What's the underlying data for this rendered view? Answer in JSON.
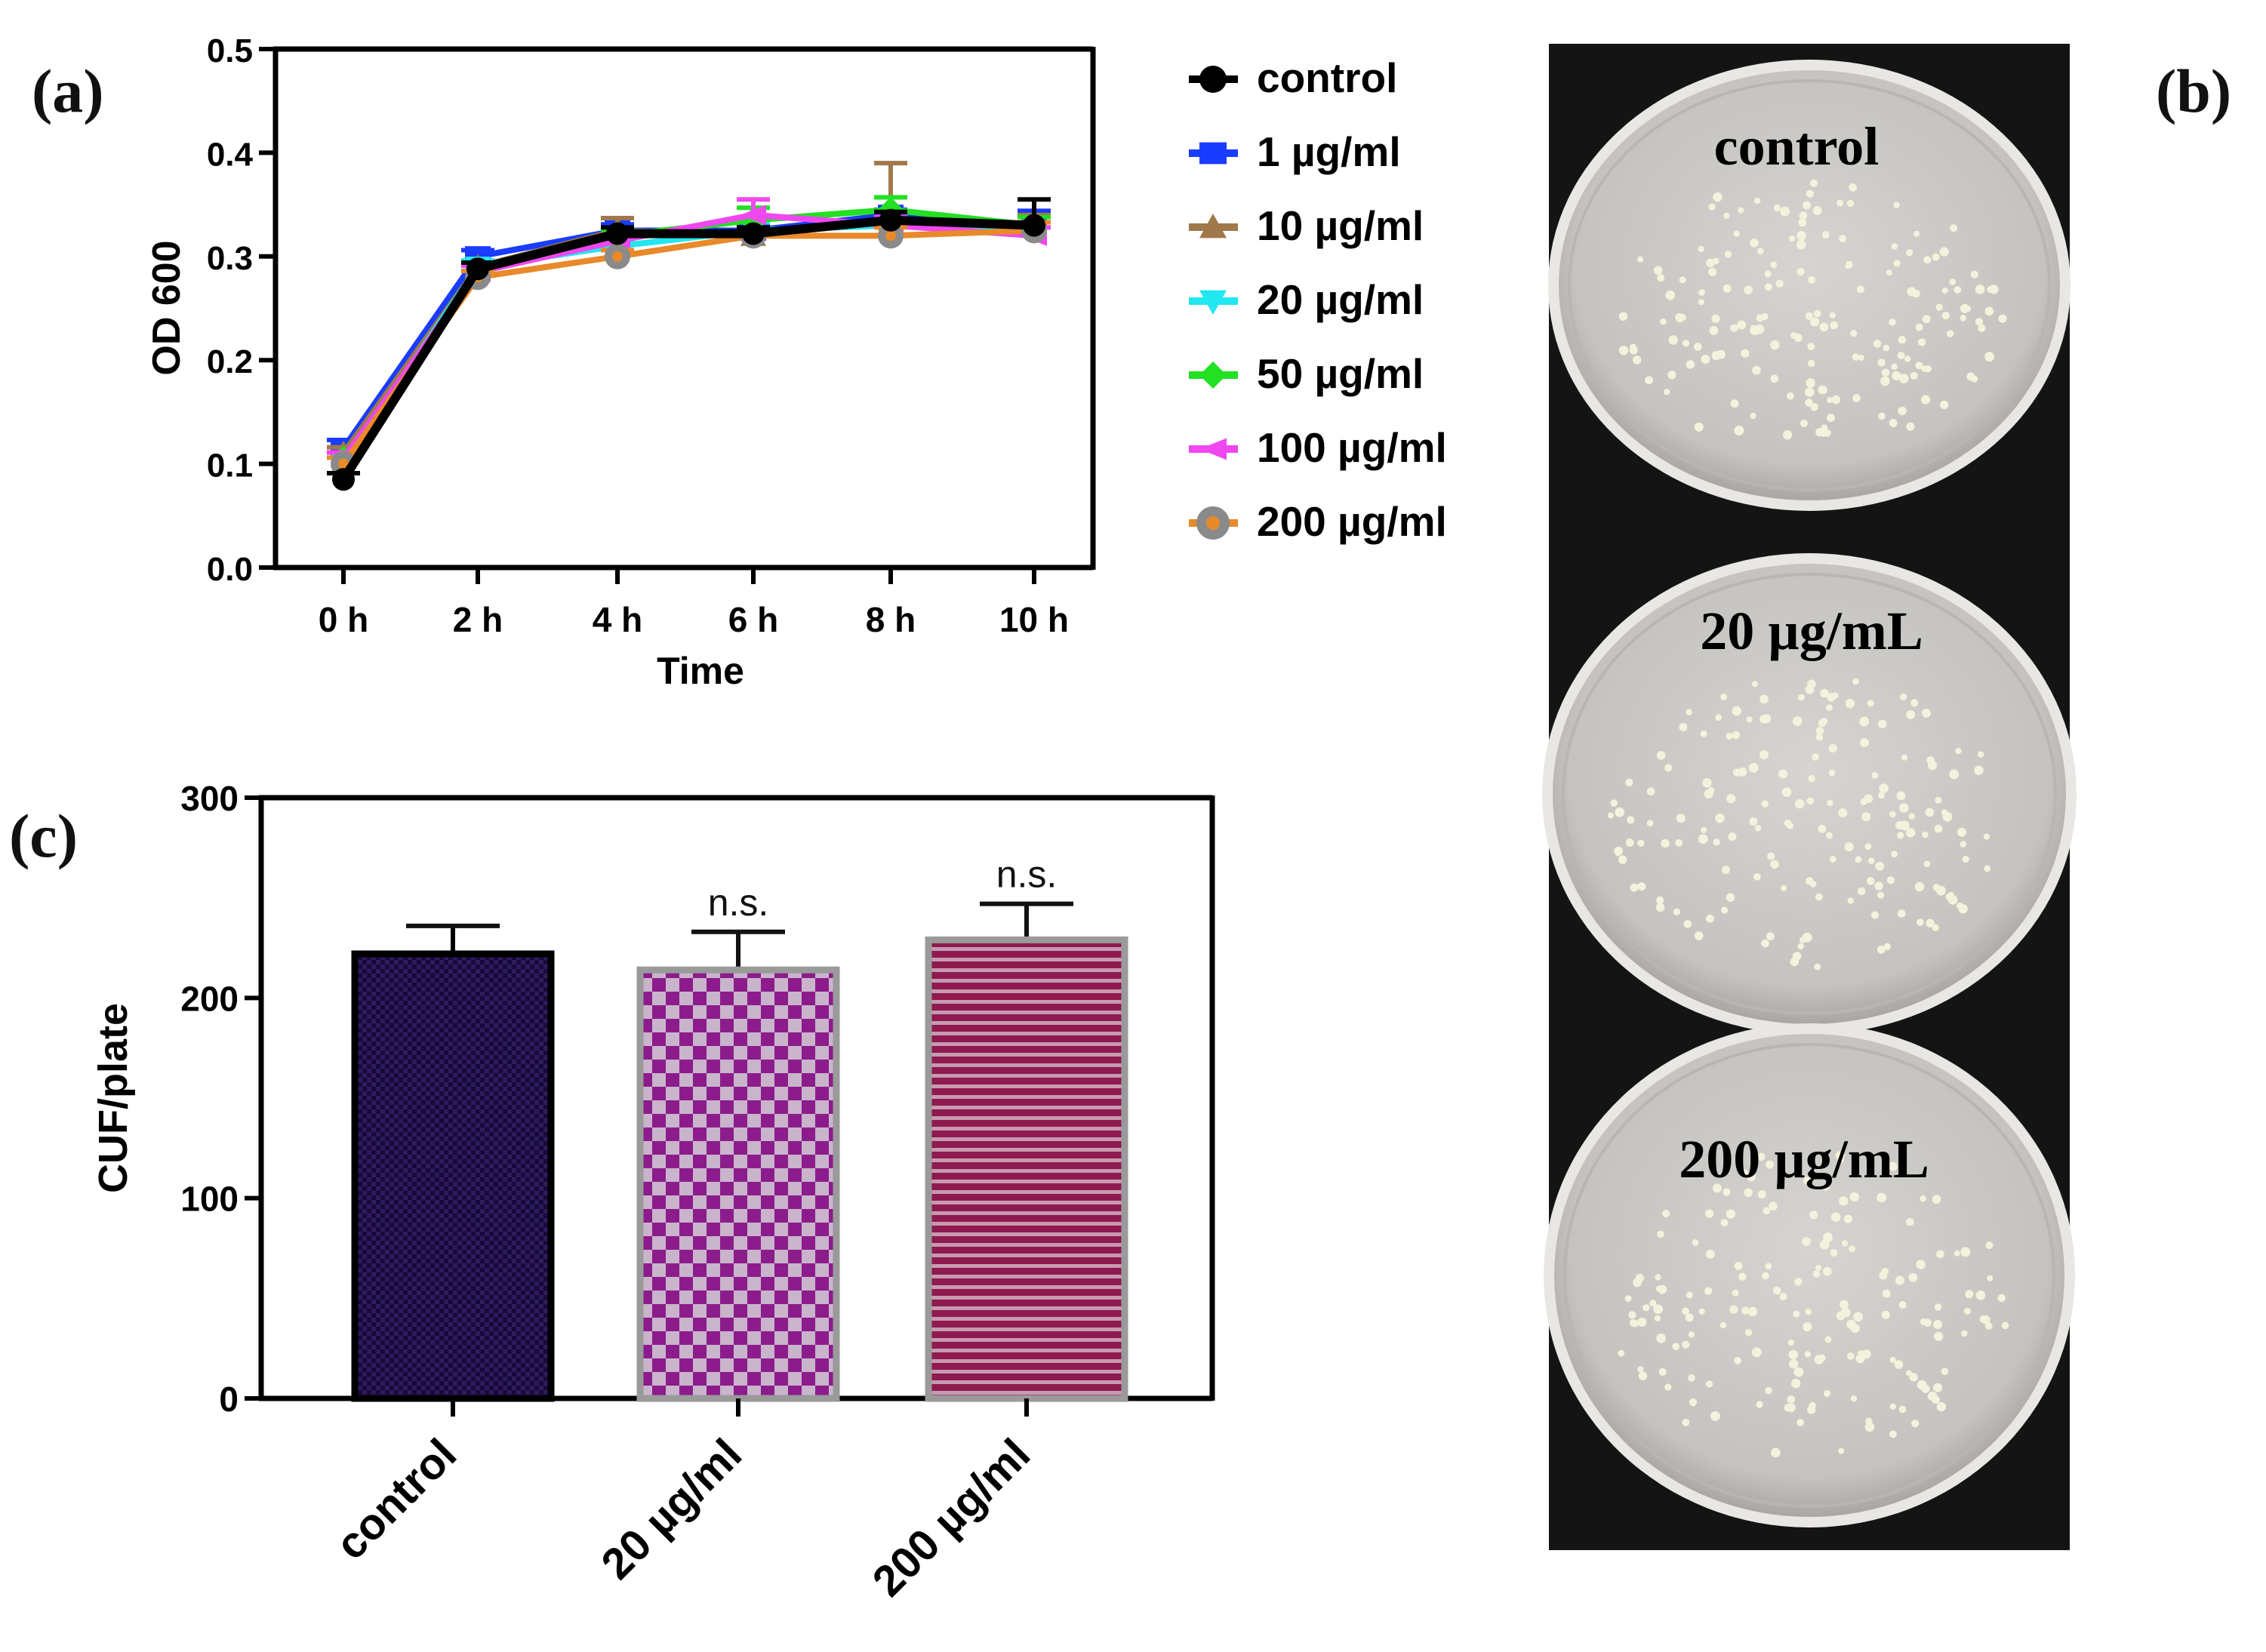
{
  "panel_labels": {
    "a": "(a)",
    "b": "(b)",
    "c": "(c)"
  },
  "chart_data": [
    {
      "type": "line",
      "panel": "a",
      "title": "",
      "xlabel": "Time",
      "ylabel": "OD 600",
      "x": [
        "0 h",
        "2 h",
        "4 h",
        "6 h",
        "8 h",
        "10 h"
      ],
      "ylim": [
        0,
        0.5
      ],
      "yticks": [
        "0.0",
        "0.1",
        "0.2",
        "0.3",
        "0.4",
        "0.5"
      ],
      "grid": false,
      "legend_position": "right",
      "series": [
        {
          "name": "1 µg/ml",
          "color": "#1a3cff",
          "marker": "square",
          "values": [
            0.115,
            0.3,
            0.325,
            0.325,
            0.34,
            0.33
          ],
          "err": [
            0.008,
            0.006,
            0.006,
            0.006,
            0.005,
            0.014
          ]
        },
        {
          "name": "10 µg/ml",
          "color": "#a0784a",
          "marker": "triangle",
          "values": [
            0.11,
            0.29,
            0.325,
            0.32,
            0.335,
            0.33
          ],
          "err": [
            0.006,
            0.006,
            0.012,
            0.006,
            0.055,
            0.01
          ]
        },
        {
          "name": "20 µg/ml",
          "color": "#22e6f0",
          "marker": "triangle-down",
          "values": [
            0.1,
            0.29,
            0.31,
            0.325,
            0.33,
            0.325
          ],
          "err": [
            0.006,
            0.006,
            0.006,
            0.008,
            0.006,
            0.008
          ]
        },
        {
          "name": "50 µg/ml",
          "color": "#22e022",
          "marker": "diamond",
          "values": [
            0.105,
            0.285,
            0.32,
            0.335,
            0.345,
            0.33
          ],
          "err": [
            0.006,
            0.006,
            0.006,
            0.012,
            0.012,
            0.008
          ]
        },
        {
          "name": "100 µg/ml",
          "color": "#f047f0",
          "marker": "triangle-left",
          "values": [
            0.105,
            0.285,
            0.315,
            0.34,
            0.33,
            0.32
          ],
          "err": [
            0.006,
            0.006,
            0.006,
            0.015,
            0.008,
            0.008
          ]
        },
        {
          "name": "200 µg/ml",
          "color": "#e8892a",
          "marker": "circle",
          "values": [
            0.1,
            0.28,
            0.3,
            0.32,
            0.32,
            0.325
          ],
          "err": [
            0.006,
            0.006,
            0.006,
            0.006,
            0.008,
            0.008
          ]
        },
        {
          "name": "control",
          "color": "#000000",
          "marker": "circle",
          "values": [
            0.085,
            0.288,
            0.322,
            0.322,
            0.335,
            0.33
          ],
          "err": [
            0.006,
            0.006,
            0.006,
            0.006,
            0.008,
            0.025
          ]
        }
      ],
      "legend_order": [
        "control",
        "1 µg/ml",
        "10 µg/ml",
        "20 µg/ml",
        "50 µg/ml",
        "100 µg/ml",
        "200 µg/ml"
      ]
    },
    {
      "type": "bar",
      "panel": "c",
      "title": "",
      "xlabel": "",
      "ylabel": "CUF/plate",
      "categories": [
        "control",
        "20 µg/ml",
        "200 µg/ml"
      ],
      "values": [
        222,
        214,
        229
      ],
      "err": [
        14,
        19,
        18
      ],
      "annotations": [
        "",
        "n.s.",
        "n.s."
      ],
      "ylim": [
        0,
        300
      ],
      "yticks": [
        "0",
        "100",
        "200",
        "300"
      ],
      "grid": false,
      "bar_fills": [
        "#2e1a5e",
        "#8c1c8c",
        "#8e1a50"
      ],
      "bar_patterns": [
        "fine-check",
        "checker",
        "horizontal-stripes"
      ]
    }
  ],
  "photos": {
    "plate_labels": [
      "control",
      "20 µg/mL",
      "200 µg/mL"
    ],
    "colors": {
      "background": "#141414",
      "agar": "#cfcdc9",
      "colony": "#f4f2dc"
    }
  }
}
